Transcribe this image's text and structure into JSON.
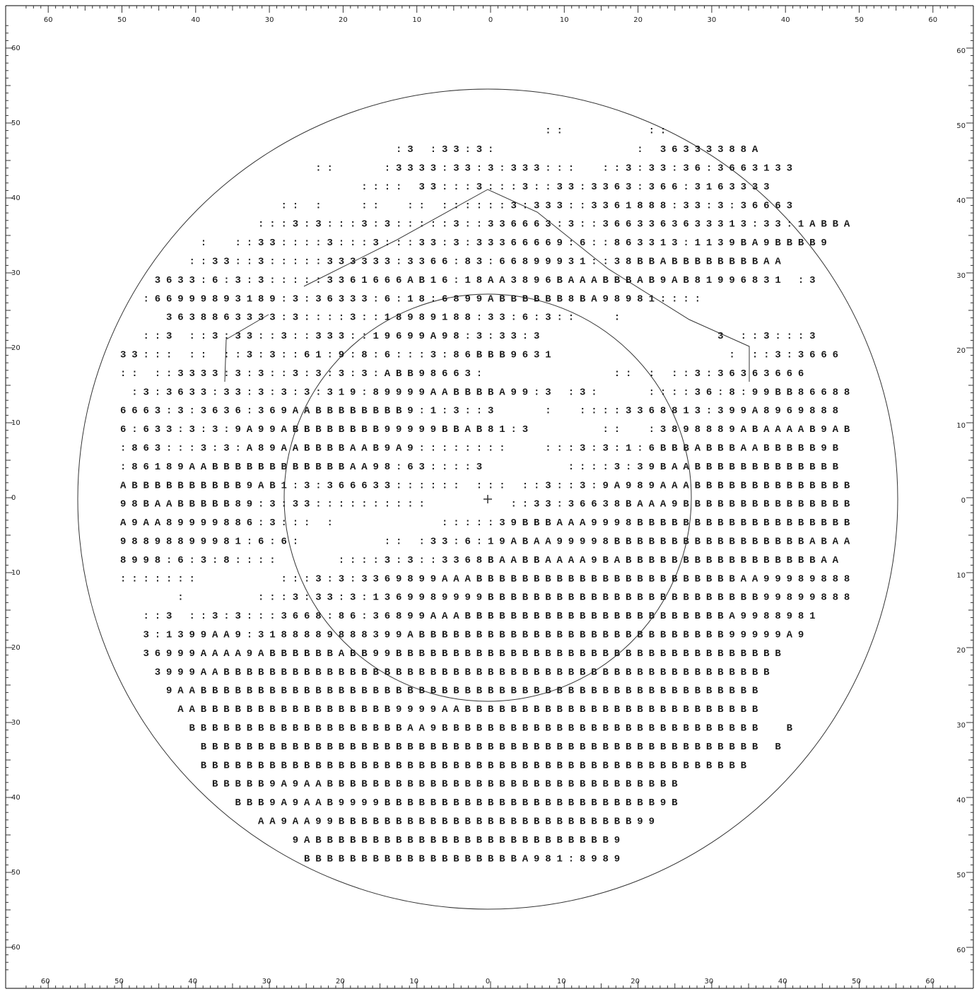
{
  "axes": {
    "top": [
      60,
      50,
      40,
      30,
      20,
      10,
      0,
      10,
      20,
      30,
      40,
      50,
      60
    ],
    "bottom": [
      60,
      50,
      40,
      30,
      20,
      10,
      0,
      10,
      20,
      30,
      40,
      50,
      60
    ],
    "left": [
      60,
      50,
      40,
      30,
      20,
      10,
      0,
      10,
      20,
      30,
      40,
      50,
      60
    ],
    "right": [
      60,
      50,
      40,
      30,
      20,
      10,
      0,
      10,
      20,
      30,
      40,
      50,
      60
    ]
  },
  "field": {
    "rows": [
      "                                     ::       ::",
      "                        :3 :33:3:            : 36333388A",
      "                 ::    :3333:33:3:333:::  ::3:33:36:3663133",
      "                     :::: 33:::3:::3::33:3363:366:3163333",
      "              :: :   ::  :: ::::::3:333::3361888:33:3:36663",
      "            :::3:3:::3:3:::::3::336663:3::3663363633313:33:1ABBA",
      "       :  ::33::::3:::3:::33:3:33366669:6::863313:1139BA9BBBB9",
      "      ::33::3:::::333333:3366:83:66899931::38BBABBBBBBBBAA",
      "   3633:6:3:3:::::3361666AB16:18AA3896BAAABBBAB9AB81996831 :3",
      "  :66999893189:3:36333:6:18:6899ABBBBBB8BA98981::::",
      "    3638863333:3::::3::18989188:33:6:3::   :",
      "  ::3 ::3:33::3::333::19699A98:3:33:3               3 ::3:::3",
      "33::: :: ::3:3::61:9:8:6:::3:86BBB9631               : ::3:3666",
      ":: ::3333:3:3::3:3:3:3:ABB98663:           :: : ::3:36363666",
      " :3:3633:33:3:3:3:319:89999AABBBBA99:3 :3:    ::::36:8:99BB86688",
      "6663:3:3636:369AABBBBBBBB9:1:3::3    :  ::::3368813:399A8969888",
      "6:633:3:3:9A99ABBBBBBBB99999BBAB81:3      ::  :3898889ABAAAAB9AB",
      ":863:::3:3:A89AABBBBAAB9A9::::::::   :::3:3:1:6BBBABBBAABBBBB9B",
      ":86189AABBBBBBBBBBBBAA98:63::::3       ::::3:39BAABBBBBBBBBBBBB",
      "ABBBBBBBBBB9AB1:3:366633:::::: ::: ::3::3:9A989AAABBBBBBBBBBBBBB",
      "98BAABBBBB89:3:33::::::::::       ::33:36638BAAA9BBBBBBBBBBBBBBB",
      "A9AA89999886:3::: :         :::::39BBBAAA9998BBBBBBBBBBBBBBBBBBB",
      "98898899981:6:6:       :: :33:6:19ABAA99998BBBBBBBBBBBBBBBBBABAA",
      "8998:6:3:8::::     ::::3:3::3368BAABBAAAA9BABBBBBBBBBBBBBBBBBAA",
      ":::::::       :::3:3:3369899AAABBBBBBBBBBBBBBBBBBBBBBBAA99989888",
      "     :      :::3:33:3:1369989999BBBBBBBBBBBBBBBBBBBBBBBB99899888",
      "  ::3 ::3:3:::3668:86:36899AAABBBBBBBBBBBBBBBBBBBBBBBA9988981",
      "  3:1399AA9:3188889888399ABBBBBBBBBBBBBBBBBBBBBBBBBBB99999A9",
      "  36999AAAA9ABBBBBBABB99BBBBBBBBBBBBBBBBBBBBBBBBBBBBBBBBBB",
      "   3999AABBBBBBBBBBBBBBBBBBBBBBBBBBBBBBBBBBBBBBBBBBBBBBBB",
      "    9AABBBBBBBBBBBBBBBBBBBBBBBBBBBBBBBBBBBBBBBBBBBBBBBBB",
      "     AABBBBBBBBBBBBBBBBB9999AABBBBBBBBBBBBBBBBBBBBBBBBBB",
      "      BBBBBBBBBBBBBBBBBBBAA9BBBBBBBBBBBBBBBBBBBBBBBBBBBB  B",
      "       BBBBBBBBBBBBBBBBBBBBBBBBBBBBBBBBBBBBBBBBBBBBBBBBB B",
      "       BBBBBBBBBBBBBBBBBBBBBBBBBBBBBBBBBBBBBBBBBBBBBBBB",
      "        BBBBB9A9AABBBBBBBBBBBBBBBBBBBBBBBBBBBBBBB",
      "          BBB9A9AAB9999BBBBBBBBBBBBBBBBBBBBBBBB9B",
      "            AA9AA99BBBBBBBBBBBBBBBBBBBBBBBBBB99",
      "               9ABBBBBBBBBBBBBBBBBBBBBBBBBB9",
      "                BBBBBBBBBBBBBBBBBBBA981:8989"
    ]
  }
}
